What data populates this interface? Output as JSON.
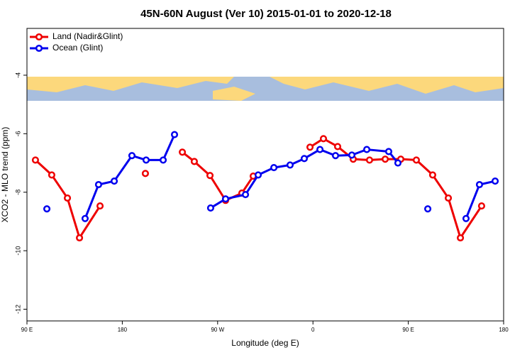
{
  "chart_data": {
    "type": "line",
    "title": "45N-60N August (Ver 10)   2015-01-01 to 2020-12-18",
    "x_label": "Longitude (deg E)",
    "y_label": "XCO2 - MLO trend (ppm)",
    "xlim": [
      90,
      540
    ],
    "xticks": [
      {
        "value": 90,
        "label": "90 E"
      },
      180,
      {
        "value": 270,
        "label": "90 W"
      },
      {
        "value": 360,
        "label": "0"
      },
      {
        "value": 450,
        "label": "90 E"
      },
      {
        "value": 540,
        "label": "180"
      }
    ],
    "ylim": [
      -12.4,
      -2.4
    ],
    "yticks": [
      -4,
      -6,
      -8,
      -10,
      -12
    ],
    "legend": "top-left",
    "series": [
      {
        "name": "Land (Nadir&Glint)",
        "color": "#ee0000",
        "x": [
          98.0,
          113.4,
          128.2,
          139.6,
          159.0,
          null,
          201.8,
          null,
          236.7,
          248.0,
          262.8,
          277.5,
          292.9,
          303.6,
          null,
          357.2,
          369.9,
          383.3,
          398.0,
          413.4,
          428.2,
          442.9,
          457.6,
          473.0,
          487.8,
          499.2,
          519.2
        ],
        "values": [
          -6.9,
          -7.41,
          -8.2,
          -9.56,
          -8.47,
          null,
          -7.36,
          null,
          -6.63,
          -6.95,
          -7.43,
          -8.28,
          -8.03,
          -7.45,
          null,
          -6.46,
          -6.17,
          -6.44,
          -6.87,
          -6.9,
          -6.87,
          -6.87,
          -6.9,
          -7.41,
          -8.2,
          -9.56,
          -8.47
        ]
      },
      {
        "name": "Ocean (Glint)",
        "color": "#0000ee",
        "x": [
          108.8,
          null,
          144.9,
          157.6,
          172.4,
          189.1,
          202.5,
          218.6,
          229.3,
          null,
          263.4,
          277.5,
          296.3,
          308.3,
          323.1,
          338.4,
          351.8,
          366.6,
          381.3,
          396.7,
          410.8,
          431.5,
          440.2,
          null,
          468.4,
          null,
          504.5,
          517.2,
          532.0
        ],
        "values": [
          -8.57,
          null,
          -8.9,
          -7.74,
          -7.62,
          -6.75,
          -6.9,
          -6.9,
          -6.03,
          null,
          -8.54,
          -8.23,
          -8.08,
          -7.41,
          -7.16,
          -7.07,
          -6.85,
          -6.54,
          -6.75,
          -6.73,
          -6.54,
          -6.61,
          -7.0,
          null,
          -8.57,
          null,
          -8.9,
          -7.74,
          -7.62
        ]
      }
    ]
  }
}
